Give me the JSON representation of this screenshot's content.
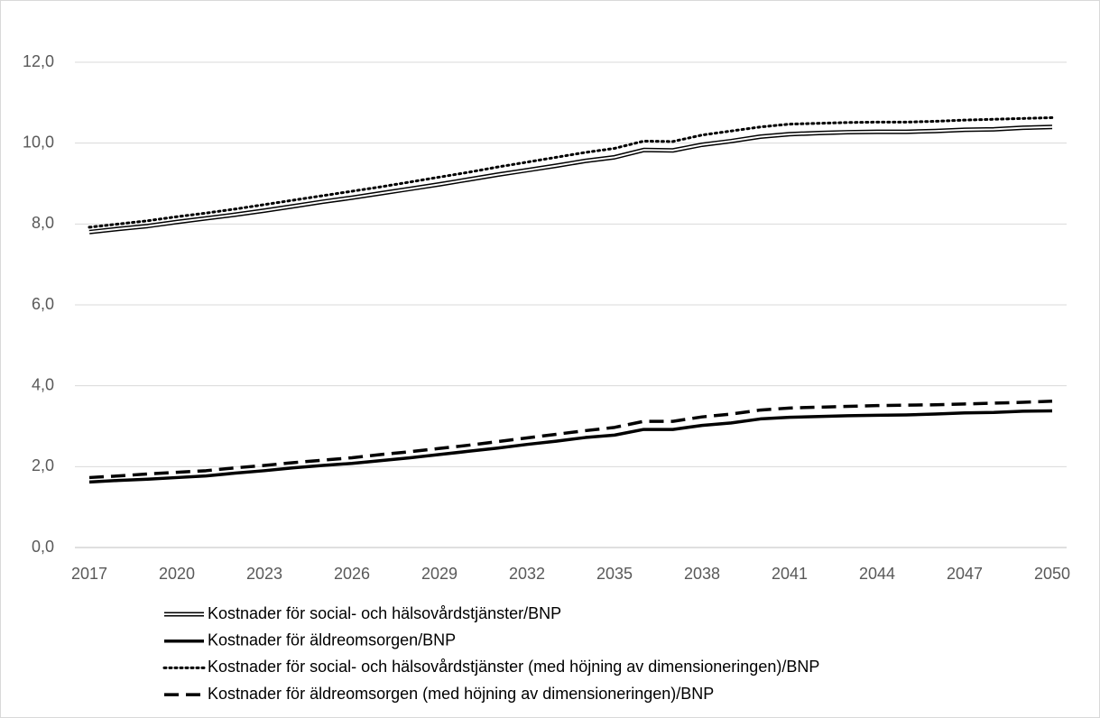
{
  "chart_data": {
    "type": "line",
    "x": [
      2017,
      2018,
      2019,
      2020,
      2021,
      2022,
      2023,
      2024,
      2025,
      2026,
      2027,
      2028,
      2029,
      2030,
      2031,
      2032,
      2033,
      2034,
      2035,
      2036,
      2037,
      2038,
      2039,
      2040,
      2041,
      2042,
      2043,
      2044,
      2045,
      2046,
      2047,
      2048,
      2049,
      2050
    ],
    "xlim": [
      2017,
      2050
    ],
    "xticks": [
      2017,
      2020,
      2023,
      2026,
      2029,
      2032,
      2035,
      2038,
      2041,
      2044,
      2047,
      2050
    ],
    "ylim": [
      0,
      12
    ],
    "yticks": [
      {
        "value": 0,
        "label": "0,0"
      },
      {
        "value": 2,
        "label": "2,0"
      },
      {
        "value": 4,
        "label": "4,0"
      },
      {
        "value": 6,
        "label": "6,0"
      },
      {
        "value": 8,
        "label": "8,0"
      },
      {
        "value": 10,
        "label": "10,0"
      },
      {
        "value": 12,
        "label": "12,0"
      }
    ],
    "grid": true,
    "legend": "bottom",
    "series": [
      {
        "name": "Kostnader för social- och hälsovårdstjänster/BNP",
        "color": "#000000",
        "style": "double",
        "values": [
          7.8,
          7.88,
          7.95,
          8.05,
          8.14,
          8.23,
          8.33,
          8.44,
          8.55,
          8.65,
          8.76,
          8.87,
          8.98,
          9.1,
          9.22,
          9.33,
          9.44,
          9.56,
          9.65,
          9.83,
          9.82,
          9.96,
          10.05,
          10.16,
          10.22,
          10.25,
          10.27,
          10.28,
          10.28,
          10.3,
          10.33,
          10.34,
          10.38,
          10.4
        ]
      },
      {
        "name": "Kostnader för äldreomsorgen/BNP",
        "color": "#000000",
        "style": "solid",
        "values": [
          1.62,
          1.66,
          1.69,
          1.73,
          1.77,
          1.84,
          1.9,
          1.97,
          2.03,
          2.08,
          2.15,
          2.22,
          2.3,
          2.38,
          2.46,
          2.55,
          2.63,
          2.72,
          2.78,
          2.92,
          2.92,
          3.02,
          3.08,
          3.18,
          3.22,
          3.24,
          3.26,
          3.27,
          3.28,
          3.3,
          3.33,
          3.34,
          3.37,
          3.38
        ]
      },
      {
        "name": "Kostnader för social- och hälsovårdstjänster (med höjning av dimensioneringen)/BNP",
        "color": "#000000",
        "style": "dotted",
        "values": [
          7.92,
          8.0,
          8.08,
          8.18,
          8.27,
          8.37,
          8.48,
          8.59,
          8.7,
          8.81,
          8.92,
          9.04,
          9.16,
          9.28,
          9.41,
          9.53,
          9.65,
          9.77,
          9.87,
          10.05,
          10.04,
          10.2,
          10.3,
          10.4,
          10.47,
          10.49,
          10.51,
          10.52,
          10.52,
          10.54,
          10.57,
          10.59,
          10.61,
          10.63
        ]
      },
      {
        "name": "Kostnader för äldreomsorgen (med höjning av dimensioneringen)/BNP",
        "color": "#000000",
        "style": "dashed",
        "values": [
          1.73,
          1.77,
          1.82,
          1.86,
          1.9,
          1.97,
          2.03,
          2.1,
          2.16,
          2.22,
          2.3,
          2.37,
          2.45,
          2.53,
          2.62,
          2.71,
          2.8,
          2.89,
          2.97,
          3.12,
          3.12,
          3.23,
          3.3,
          3.4,
          3.45,
          3.47,
          3.49,
          3.51,
          3.52,
          3.53,
          3.55,
          3.57,
          3.59,
          3.62
        ]
      }
    ]
  }
}
